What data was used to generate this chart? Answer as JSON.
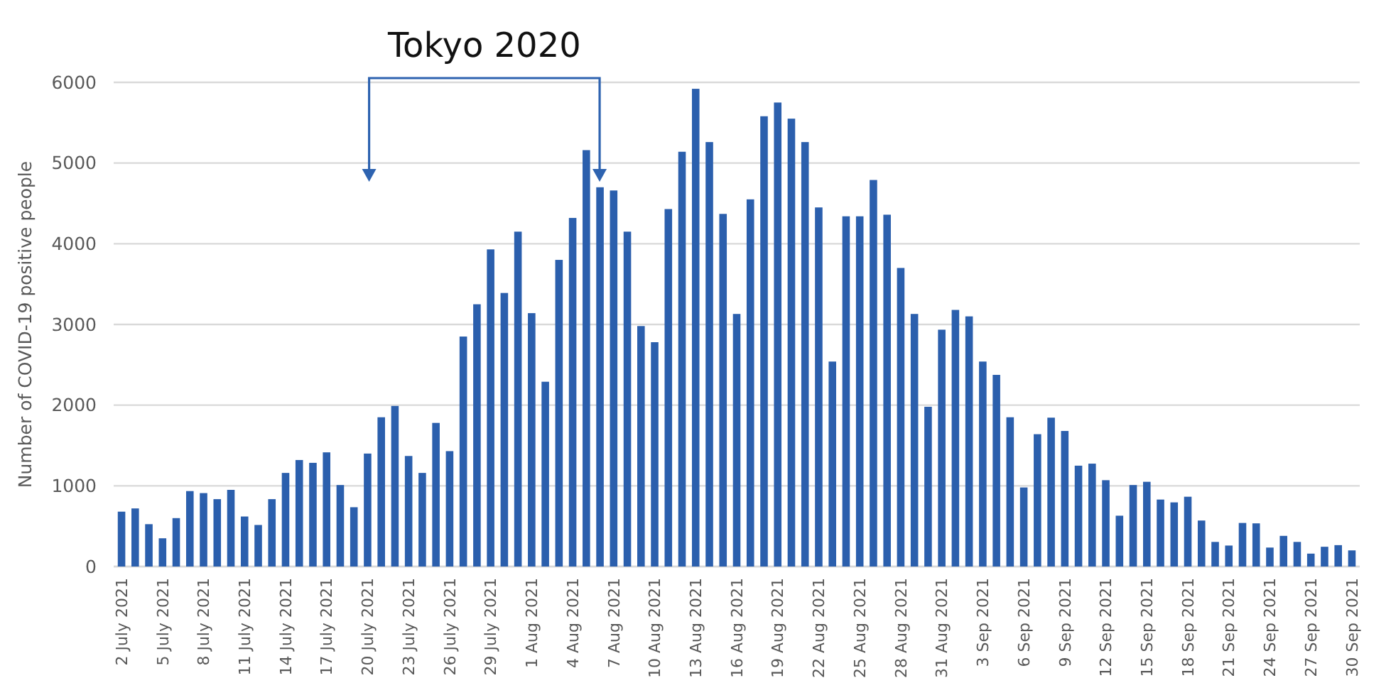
{
  "chart_data": {
    "type": "bar",
    "ylabel": "Number of COVID-19 positive people",
    "annotations": [
      "Tokyo 2020"
    ],
    "categories": [
      "2 July 2021",
      null,
      null,
      "5 July 2021",
      null,
      null,
      "8 July 2021",
      null,
      null,
      "11 July 2021",
      null,
      null,
      "14 July 2021",
      null,
      null,
      "17 July 2021",
      null,
      null,
      "20 July 2021",
      null,
      null,
      "23 July 2021",
      null,
      null,
      "26 July 2021",
      null,
      null,
      "29 July 2021",
      null,
      null,
      "1 Aug 2021",
      null,
      null,
      "4 Aug 2021",
      null,
      null,
      "7 Aug 2021",
      null,
      null,
      "10 Aug 2021",
      null,
      null,
      "13 Aug 2021",
      null,
      null,
      "16 Aug 2021",
      null,
      null,
      "19 Aug 2021",
      null,
      null,
      "22 Aug 2021",
      null,
      null,
      "25 Aug 2021",
      null,
      null,
      "28 Aug 2021",
      null,
      null,
      "31 Aug 2021",
      null,
      null,
      "3 Sep 2021",
      null,
      null,
      "6 Sep 2021",
      null,
      null,
      "9 Sep 2021",
      null,
      null,
      "12 Sep 2021",
      null,
      null,
      "15 Sep 2021",
      null,
      null,
      "18 Sep 2021",
      null,
      null,
      "21 Sep 2021",
      null,
      null,
      "24 Sep 2021",
      null,
      null,
      "27 Sep 2021",
      null,
      null,
      "30 Sep 2021"
    ],
    "values": [
      680,
      720,
      525,
      350,
      600,
      935,
      910,
      835,
      950,
      620,
      515,
      835,
      1160,
      1320,
      1285,
      1415,
      1010,
      735,
      1400,
      1850,
      1990,
      1370,
      1160,
      1780,
      1430,
      2850,
      3250,
      3930,
      3390,
      4150,
      3140,
      2290,
      3800,
      4320,
      5160,
      4700,
      4660,
      4150,
      2980,
      2780,
      4430,
      5140,
      5920,
      5260,
      4370,
      3130,
      4550,
      5580,
      5750,
      5550,
      5260,
      4450,
      2540,
      4340,
      4340,
      4790,
      4360,
      3700,
      3130,
      1980,
      2935,
      3180,
      3100,
      2540,
      2375,
      1850,
      980,
      1640,
      1845,
      1680,
      1250,
      1275,
      1070,
      630,
      1010,
      1050,
      830,
      795,
      865,
      570,
      305,
      260,
      540,
      535,
      235,
      380,
      305,
      160,
      245,
      265,
      200
    ],
    "color": "#2b5fad",
    "ylim": [
      0,
      6000
    ],
    "yticks": [
      0,
      1000,
      2000,
      3000,
      4000,
      5000,
      6000
    ],
    "grid": "y"
  }
}
